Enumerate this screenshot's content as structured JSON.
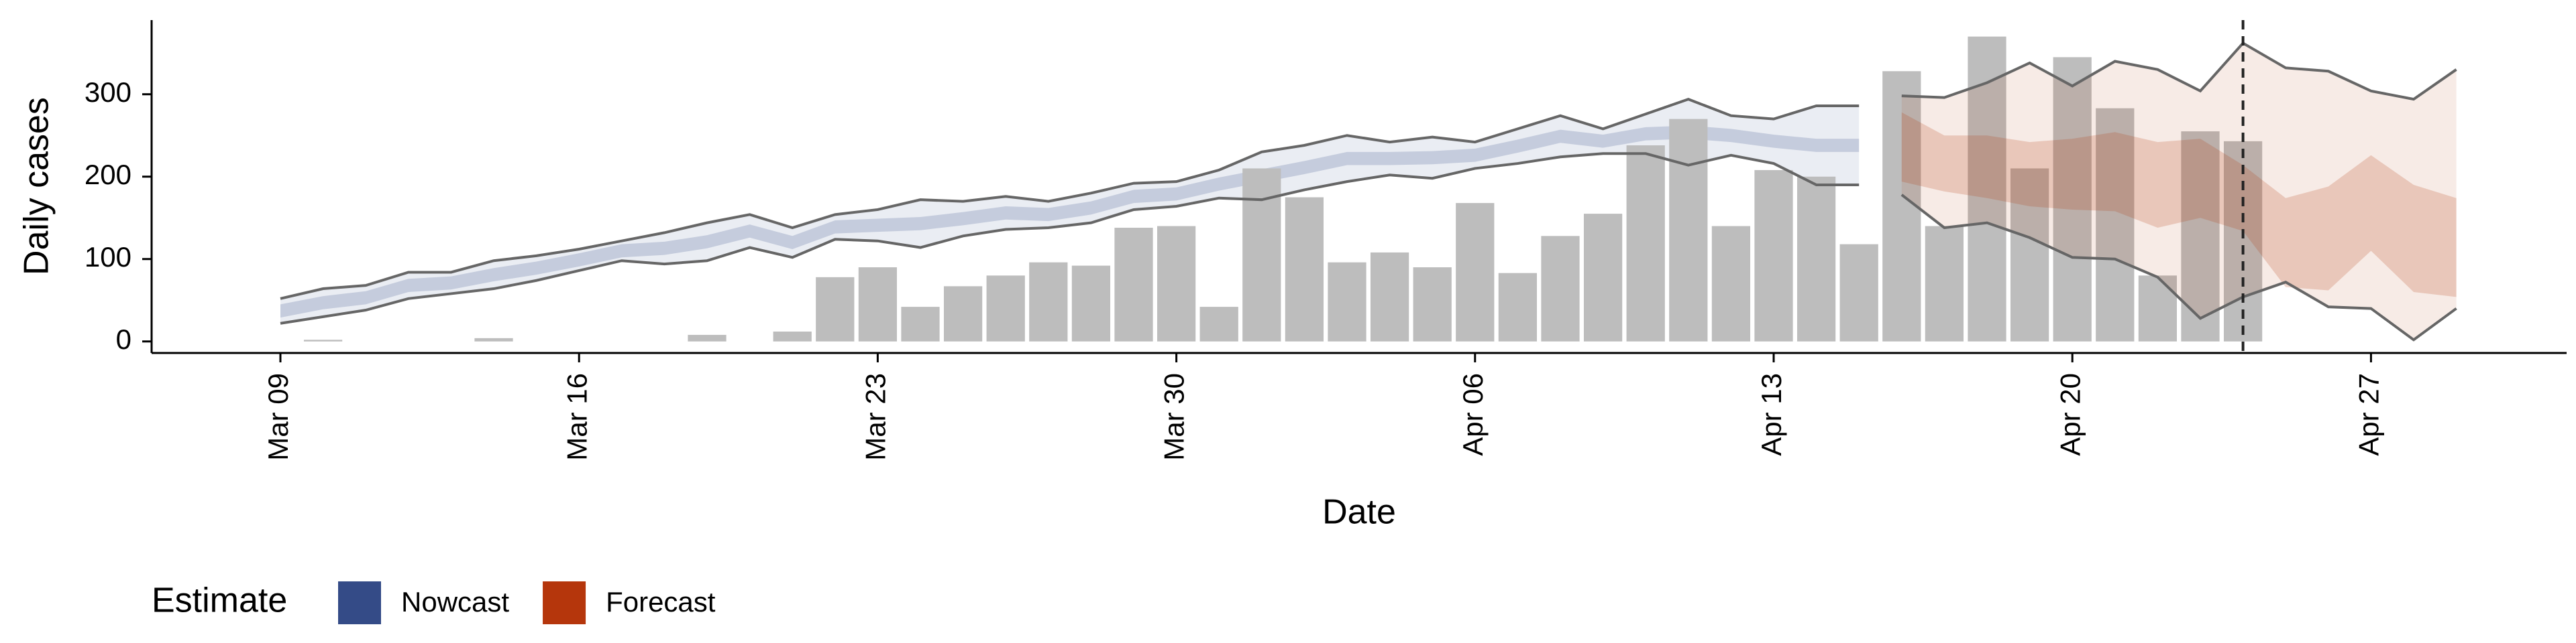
{
  "chart_data": {
    "type": "band-bar",
    "ylabel": "Daily cases",
    "xlabel": "Date",
    "legend_title": "Estimate",
    "categories": [
      "Mar 09",
      null,
      null,
      null,
      null,
      null,
      null,
      "Mar 16",
      null,
      null,
      null,
      null,
      null,
      null,
      "Mar 23",
      null,
      null,
      null,
      null,
      null,
      null,
      "Mar 30",
      null,
      null,
      null,
      null,
      null,
      null,
      "Apr 06",
      null,
      null,
      null,
      null,
      null,
      null,
      "Apr 13",
      null,
      null,
      null,
      null,
      null,
      null,
      "Apr 20",
      null,
      null,
      null,
      null,
      null,
      null,
      "Apr 27",
      null,
      null
    ],
    "bars": {
      "color": "#bdbdbd",
      "values": [
        null,
        2,
        0,
        0,
        0,
        4,
        0,
        0,
        0,
        0,
        8,
        0,
        12,
        78,
        90,
        42,
        67,
        80,
        96,
        92,
        138,
        140,
        42,
        210,
        175,
        96,
        108,
        90,
        168,
        83,
        128,
        155,
        238,
        270,
        140,
        208,
        200,
        118,
        328,
        140,
        370,
        210,
        345,
        283,
        80,
        255,
        243,
        null,
        null,
        null,
        null,
        null
      ]
    },
    "series": [
      {
        "name": "Nowcast",
        "color": "#344b87",
        "upper_90": [
          52,
          64,
          68,
          84,
          84,
          98,
          104,
          112,
          122,
          132,
          144,
          154,
          138,
          154,
          160,
          172,
          170,
          176,
          170,
          180,
          192,
          194,
          208,
          230,
          238,
          250,
          242,
          248,
          242,
          258,
          274,
          258,
          276,
          294,
          274,
          270,
          286,
          286,
          null,
          null,
          null,
          null,
          null,
          null,
          null,
          null,
          null,
          null,
          null,
          null,
          null,
          null
        ],
        "lower_90": [
          22,
          30,
          38,
          52,
          58,
          64,
          74,
          86,
          98,
          94,
          98,
          114,
          102,
          124,
          122,
          114,
          128,
          136,
          138,
          144,
          160,
          164,
          174,
          172,
          184,
          194,
          202,
          198,
          210,
          216,
          224,
          228,
          228,
          214,
          226,
          216,
          190,
          190,
          null,
          null,
          null,
          null,
          null,
          null,
          null,
          null,
          null,
          null,
          null,
          null,
          null,
          null
        ],
        "upper_50": [
          45,
          55,
          61,
          76,
          79,
          89,
          97,
          107,
          118,
          121,
          129,
          142,
          128,
          147,
          149,
          151,
          157,
          164,
          162,
          170,
          184,
          187,
          199,
          209,
          219,
          230,
          230,
          231,
          234,
          245,
          257,
          251,
          260,
          262,
          258,
          251,
          246,
          246,
          null,
          null,
          null,
          null,
          null,
          null,
          null,
          null,
          null,
          null,
          null,
          null,
          null,
          null
        ],
        "lower_50": [
          29,
          39,
          45,
          60,
          63,
          73,
          81,
          91,
          102,
          105,
          113,
          126,
          112,
          131,
          133,
          135,
          141,
          148,
          146,
          154,
          168,
          171,
          183,
          193,
          203,
          214,
          214,
          215,
          218,
          229,
          241,
          235,
          244,
          246,
          242,
          235,
          230,
          230,
          null,
          null,
          null,
          null,
          null,
          null,
          null,
          null,
          null,
          null,
          null,
          null,
          null,
          null
        ]
      },
      {
        "name": "Forecast",
        "color": "#b5360c",
        "upper_90": [
          null,
          null,
          null,
          null,
          null,
          null,
          null,
          null,
          null,
          null,
          null,
          null,
          null,
          null,
          null,
          null,
          null,
          null,
          null,
          null,
          null,
          null,
          null,
          null,
          null,
          null,
          null,
          null,
          null,
          null,
          null,
          null,
          null,
          null,
          null,
          null,
          null,
          null,
          298,
          296,
          314,
          338,
          310,
          340,
          330,
          304,
          362,
          332,
          328,
          304,
          294,
          330
        ],
        "lower_90": [
          null,
          null,
          null,
          null,
          null,
          null,
          null,
          null,
          null,
          null,
          null,
          null,
          null,
          null,
          null,
          null,
          null,
          null,
          null,
          null,
          null,
          null,
          null,
          null,
          null,
          null,
          null,
          null,
          null,
          null,
          null,
          null,
          null,
          null,
          null,
          null,
          null,
          null,
          178,
          138,
          144,
          126,
          102,
          100,
          78,
          28,
          54,
          72,
          42,
          40,
          2,
          40
        ],
        "upper_50": [
          null,
          null,
          null,
          null,
          null,
          null,
          null,
          null,
          null,
          null,
          null,
          null,
          null,
          null,
          null,
          null,
          null,
          null,
          null,
          null,
          null,
          null,
          null,
          null,
          null,
          null,
          null,
          null,
          null,
          null,
          null,
          null,
          null,
          null,
          null,
          null,
          null,
          null,
          278,
          250,
          250,
          242,
          246,
          254,
          242,
          246,
          214,
          174,
          188,
          226,
          190,
          174
        ],
        "lower_50": [
          null,
          null,
          null,
          null,
          null,
          null,
          null,
          null,
          null,
          null,
          null,
          null,
          null,
          null,
          null,
          null,
          null,
          null,
          null,
          null,
          null,
          null,
          null,
          null,
          null,
          null,
          null,
          null,
          null,
          null,
          null,
          null,
          null,
          null,
          null,
          null,
          null,
          null,
          194,
          182,
          174,
          164,
          160,
          158,
          138,
          150,
          134,
          66,
          62,
          110,
          60,
          54
        ]
      }
    ],
    "vline": 46,
    "ylim": [
      -14,
      390
    ],
    "yticks": [
      0,
      100,
      200,
      300
    ],
    "line_color": "#666666"
  }
}
